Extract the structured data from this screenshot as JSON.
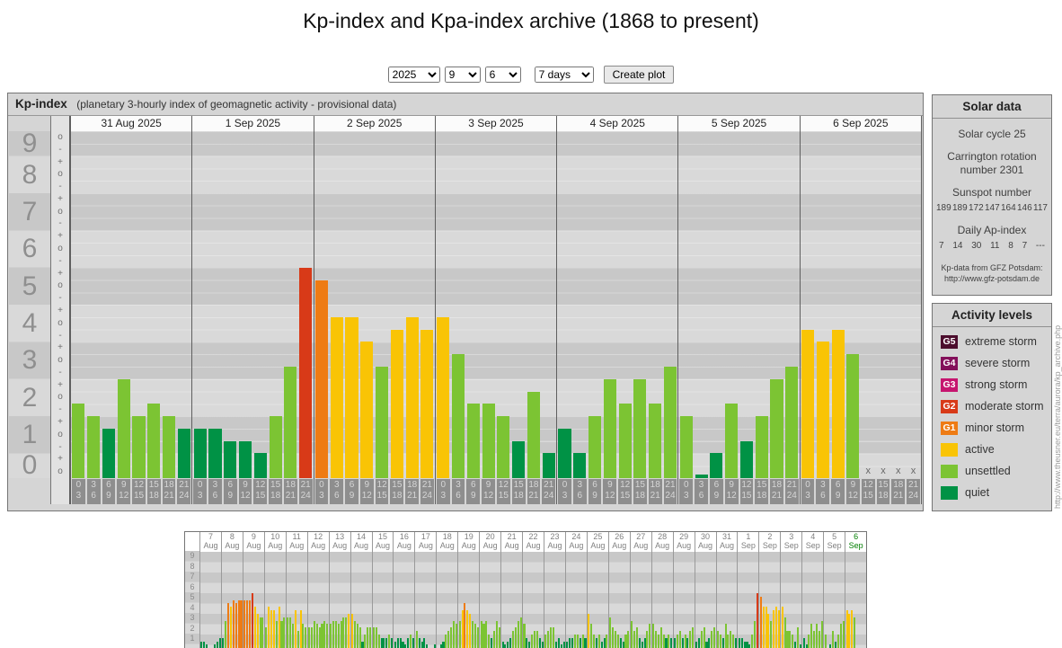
{
  "page": {
    "title": "Kp-index and Kpa-index archive (1868 to present)"
  },
  "controls": {
    "year": "2025",
    "month": "9",
    "day": "6",
    "range": "7 days",
    "create_button": "Create plot"
  },
  "kp_colors": {
    "quiet": "#009245",
    "unsettled": "#7cc433",
    "active": "#f9c405",
    "g1": "#ee7b14",
    "g2": "#d83a18",
    "g3": "#c6156f",
    "g4": "#830f5a",
    "g5": "#4c0d2d"
  },
  "chart_data": [
    {
      "id": "kp-main",
      "type": "bar",
      "title": "Kp-index",
      "subtitle": "(planetary 3-hourly index of geomagnetic activity - provisional data)",
      "ylabel": "Kp",
      "ylim": [
        0,
        9.33
      ],
      "y_ticks": [
        9,
        8,
        7,
        6,
        5,
        4,
        3,
        2,
        1,
        0
      ],
      "missing_marker": "x",
      "interval_labels": [
        [
          "0",
          "3"
        ],
        [
          "3",
          "6"
        ],
        [
          "6",
          "9"
        ],
        [
          "9",
          "12"
        ],
        [
          "12",
          "15"
        ],
        [
          "15",
          "18"
        ],
        [
          "18",
          "21"
        ],
        [
          "21",
          "24"
        ]
      ],
      "days": [
        {
          "date": "31 Aug 2025",
          "values": [
            2,
            1.67,
            1.33,
            2.67,
            1.67,
            2,
            1.67,
            1.33
          ]
        },
        {
          "date": "1 Sep 2025",
          "values": [
            1.33,
            1.33,
            1,
            1,
            0.67,
            1.67,
            3,
            5.67
          ]
        },
        {
          "date": "2 Sep 2025",
          "values": [
            5.33,
            4.33,
            4.33,
            3.67,
            3,
            4,
            4.33,
            4
          ]
        },
        {
          "date": "3 Sep 2025",
          "values": [
            4.33,
            3.33,
            2,
            2,
            1.67,
            1,
            2.33,
            0.67
          ]
        },
        {
          "date": "4 Sep 2025",
          "values": [
            1.33,
            0.67,
            1.67,
            2.67,
            2,
            2.67,
            2,
            3
          ]
        },
        {
          "date": "5 Sep 2025",
          "values": [
            1.67,
            0.1,
            0.67,
            2,
            1,
            1.67,
            2.67,
            3
          ]
        },
        {
          "date": "6 Sep 2025",
          "values": [
            4,
            3.67,
            4,
            3.33,
            null,
            null,
            null,
            null
          ]
        }
      ]
    },
    {
      "id": "kp-mini",
      "type": "bar",
      "y_ticks": [
        9,
        8,
        7,
        6,
        5,
        4,
        3,
        2,
        1
      ],
      "ylim": [
        0,
        9.6
      ],
      "days": [
        {
          "day": "7",
          "month": "Aug",
          "values": [
            1,
            1,
            0.67,
            0.33,
            0.33,
            0.67,
            1,
            1.33
          ]
        },
        {
          "day": "8",
          "month": "Aug",
          "values": [
            1.33,
            3,
            4.67,
            4.33,
            5,
            4.67,
            5,
            5
          ]
        },
        {
          "day": "9",
          "month": "Aug",
          "values": [
            5,
            5,
            5,
            5.67,
            4.33,
            3.67,
            3.33,
            3.33
          ]
        },
        {
          "day": "10",
          "month": "Aug",
          "values": [
            2.33,
            4.33,
            4,
            4,
            3,
            4.33,
            3,
            3.33
          ]
        },
        {
          "day": "11",
          "month": "Aug",
          "values": [
            3.33,
            3.33,
            2.67,
            4,
            2,
            4,
            2.67,
            2.33
          ]
        },
        {
          "day": "12",
          "month": "Aug",
          "values": [
            2.33,
            2.33,
            3,
            2.67,
            2.33,
            2.67,
            3,
            2.67
          ]
        },
        {
          "day": "13",
          "month": "Aug",
          "values": [
            2.67,
            3,
            3,
            2.67,
            3,
            3.33,
            3.33,
            3.67
          ]
        },
        {
          "day": "14",
          "month": "Aug",
          "values": [
            3.67,
            3,
            2.67,
            2.33,
            1,
            1.67,
            2.33,
            2.33
          ]
        },
        {
          "day": "15",
          "month": "Aug",
          "values": [
            2.33,
            2.33,
            1.67,
            1.33,
            1.33,
            1.33,
            1.67,
            1.33
          ]
        },
        {
          "day": "16",
          "month": "Aug",
          "values": [
            1,
            1.33,
            1.33,
            1,
            0.67,
            1.33,
            1.67,
            1.33
          ]
        },
        {
          "day": "17",
          "month": "Aug",
          "values": [
            2,
            1.33,
            1,
            1.33,
            0.67,
            0.33,
            0.33,
            0.67
          ]
        },
        {
          "day": "18",
          "month": "Aug",
          "values": [
            0.33,
            0.67,
            1,
            1.67,
            2,
            2.33,
            3,
            2.67
          ]
        },
        {
          "day": "19",
          "month": "Aug",
          "values": [
            3,
            4,
            4.67,
            4,
            3.67,
            3,
            2.67,
            2.33
          ]
        },
        {
          "day": "20",
          "month": "Aug",
          "values": [
            3,
            2.67,
            3,
            1.67,
            1.33,
            2,
            3,
            2.33
          ]
        },
        {
          "day": "21",
          "month": "Aug",
          "values": [
            1,
            0.67,
            1,
            1.33,
            2,
            2.33,
            3,
            3.33
          ]
        },
        {
          "day": "22",
          "month": "Aug",
          "values": [
            2.67,
            1.33,
            1,
            1.67,
            2,
            2,
            1.33,
            1
          ]
        },
        {
          "day": "23",
          "month": "Aug",
          "values": [
            1.67,
            2,
            2.33,
            2.33,
            1,
            1.33,
            0.67,
            1
          ]
        },
        {
          "day": "24",
          "month": "Aug",
          "values": [
            1,
            1.33,
            1.33,
            1.67,
            1.67,
            1.33,
            1.67,
            1.33
          ]
        },
        {
          "day": "25",
          "month": "Aug",
          "values": [
            3.67,
            2.67,
            1.67,
            1.33,
            1.67,
            1,
            1.33,
            1.67
          ]
        },
        {
          "day": "26",
          "month": "Aug",
          "values": [
            3.33,
            2.33,
            2,
            1.67,
            1.33,
            1,
            1.67,
            2
          ]
        },
        {
          "day": "27",
          "month": "Aug",
          "values": [
            3,
            2,
            2.33,
            1.33,
            1,
            1.33,
            2,
            2.67
          ]
        },
        {
          "day": "28",
          "month": "Aug",
          "values": [
            2.67,
            2,
            1.67,
            2.33,
            1.67,
            1.33,
            1.67,
            1.33
          ]
        },
        {
          "day": "29",
          "month": "Aug",
          "values": [
            1.33,
            1.67,
            2,
            1.33,
            1.67,
            1.33,
            2,
            2.33
          ]
        },
        {
          "day": "30",
          "month": "Aug",
          "values": [
            1,
            1.33,
            2,
            2.33,
            1,
            1.33,
            2,
            2.33
          ]
        },
        {
          "day": "31",
          "month": "Aug",
          "values": [
            2,
            1.67,
            1.33,
            2.67,
            1.67,
            2,
            1.67,
            1.33
          ]
        },
        {
          "day": "1",
          "month": "Sep",
          "values": [
            1.33,
            1.33,
            1,
            1,
            0.67,
            1.67,
            3,
            5.67
          ]
        },
        {
          "day": "2",
          "month": "Sep",
          "values": [
            5.33,
            4.33,
            4.33,
            3.67,
            3,
            4,
            4.33,
            4
          ]
        },
        {
          "day": "3",
          "month": "Sep",
          "values": [
            4.33,
            3.33,
            2,
            2,
            1.67,
            1,
            2.33,
            0.67
          ]
        },
        {
          "day": "4",
          "month": "Sep",
          "values": [
            1.33,
            0.67,
            1.67,
            2.67,
            2,
            2.67,
            2,
            3
          ]
        },
        {
          "day": "5",
          "month": "Sep",
          "values": [
            1.67,
            0.1,
            0.67,
            2,
            1,
            1.67,
            2.67,
            3
          ]
        },
        {
          "day": "6",
          "month": "Sep",
          "highlight": true,
          "values": [
            4,
            3.67,
            4,
            3.33,
            null,
            null,
            null,
            null
          ]
        }
      ]
    }
  ],
  "solar_panel": {
    "title": "Solar data",
    "cycle": "Solar cycle 25",
    "carrington": "Carrington rotation number 2301",
    "sunspot_title": "Sunspot number",
    "sunspot_values": [
      "189",
      "189",
      "172",
      "147",
      "164",
      "146",
      "117"
    ],
    "ap_title": "Daily Ap-index",
    "ap_values": [
      "7",
      "14",
      "30",
      "11",
      "8",
      "7",
      "---"
    ],
    "source_line1": "Kp-data from GFZ Potsdam:",
    "source_line2": "http://www.gfz-potsdam.de"
  },
  "activity_panel": {
    "title": "Activity levels",
    "items": [
      {
        "badge": "G5",
        "label": "extreme storm",
        "color": "#4c0d2d"
      },
      {
        "badge": "G4",
        "label": "severe storm",
        "color": "#830f5a"
      },
      {
        "badge": "G3",
        "label": "strong storm",
        "color": "#c6156f"
      },
      {
        "badge": "G2",
        "label": "moderate storm",
        "color": "#d83a18"
      },
      {
        "badge": "G1",
        "label": "minor storm",
        "color": "#ee7b14"
      },
      {
        "badge": "",
        "label": "active",
        "color": "#f9c405"
      },
      {
        "badge": "",
        "label": "unsettled",
        "color": "#7cc433"
      },
      {
        "badge": "",
        "label": "quiet",
        "color": "#009245"
      }
    ]
  },
  "watermark": "http://www.theusner.eu/terra/aurora/kp_archive.php"
}
